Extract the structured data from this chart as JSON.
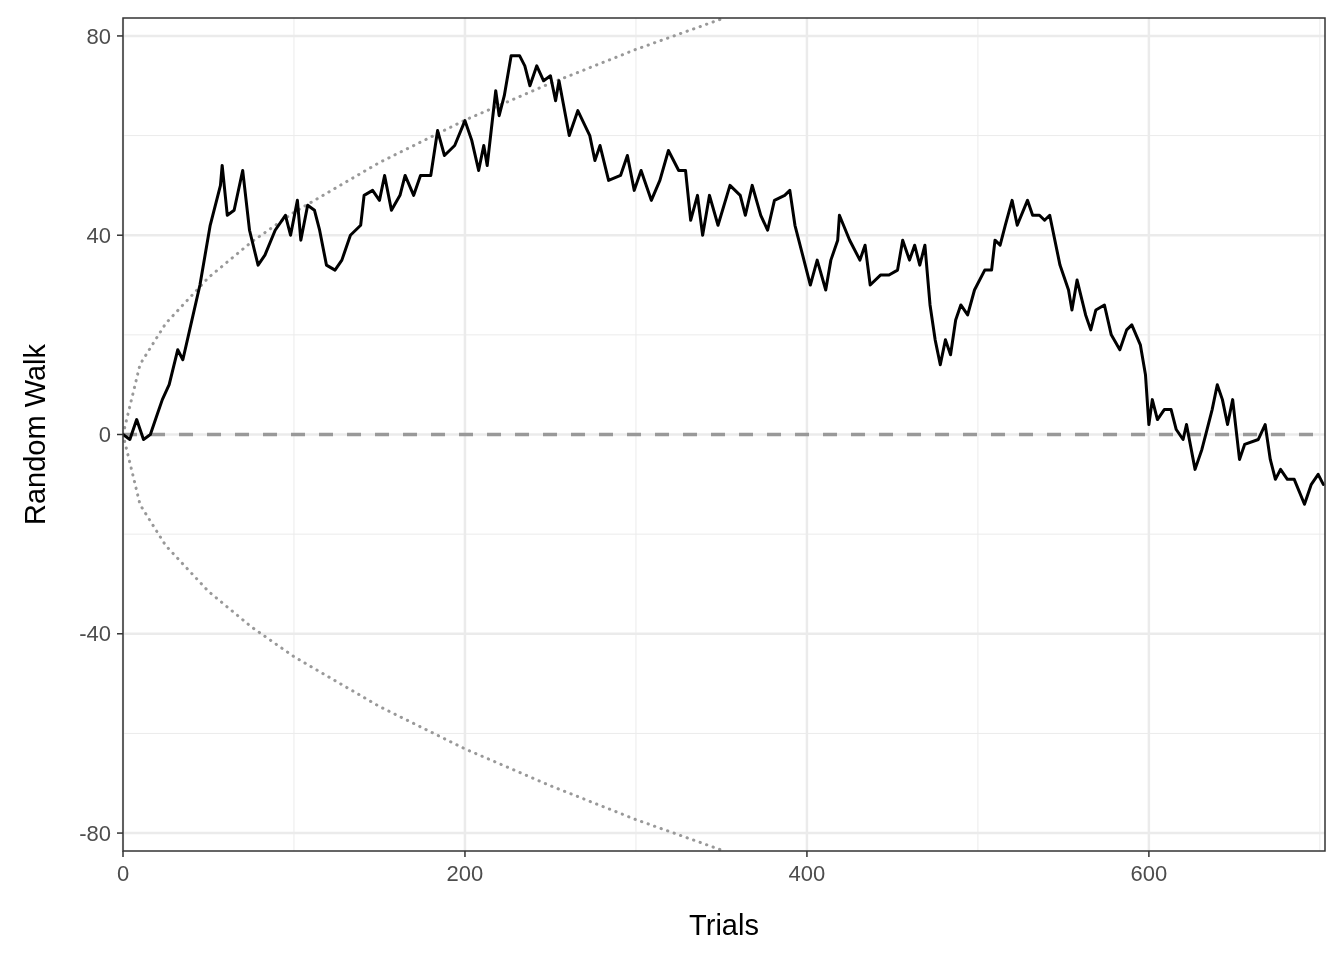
{
  "chart_data": {
    "type": "line",
    "xlabel": "Trials",
    "ylabel": "Random Walk",
    "xlim": [
      0,
      703
    ],
    "ylim": [
      -83.6,
      83.6
    ],
    "xticks": [
      0,
      200,
      400,
      600
    ],
    "yticks": [
      -80,
      -40,
      0,
      40,
      80
    ],
    "grid": true,
    "ref_lines": [
      {
        "axis": "y",
        "value": 0,
        "color": "#999999",
        "line_style": "dashed"
      }
    ],
    "series": [
      {
        "color": "#999999",
        "line_style": "dotted",
        "x": [
          0,
          10,
          25,
          50,
          75,
          100,
          150,
          200,
          250,
          300,
          350
        ],
        "values": [
          0,
          14.1,
          22.3,
          31.5,
          38.6,
          44.6,
          54.6,
          63.1,
          70.5,
          77.3,
          83.4
        ]
      },
      {
        "color": "#999999",
        "line_style": "dotted",
        "x": [
          0,
          10,
          25,
          50,
          75,
          100,
          150,
          200,
          250,
          300,
          350
        ],
        "values": [
          0,
          -14.1,
          -22.3,
          -31.5,
          -38.6,
          -44.6,
          -54.6,
          -63.1,
          -70.5,
          -77.3,
          -83.4
        ]
      },
      {
        "color": "#000000",
        "line_style": "solid",
        "x": [
          0,
          4,
          8,
          12,
          16,
          20,
          23,
          27,
          32,
          35,
          39,
          45,
          51,
          57,
          58,
          61,
          65,
          70,
          74,
          79,
          83,
          89,
          95,
          98,
          102,
          104,
          108,
          112,
          115,
          119,
          124,
          128,
          133,
          139,
          141,
          146,
          150,
          153,
          157,
          162,
          165,
          170,
          174,
          180,
          184,
          188,
          194,
          200,
          204,
          208,
          211,
          213,
          218,
          220,
          223,
          227,
          232,
          235,
          238,
          242,
          246,
          250,
          253,
          255,
          261,
          266,
          273,
          276,
          279,
          284,
          291,
          295,
          299,
          303,
          309,
          314,
          319,
          325,
          329,
          332,
          336,
          339,
          343,
          348,
          355,
          361,
          364,
          368,
          373,
          377,
          381,
          387,
          390,
          393,
          399,
          402,
          406,
          411,
          414,
          418,
          419,
          425,
          431,
          434,
          437,
          443,
          448,
          453,
          456,
          460,
          463,
          466,
          469,
          472,
          475,
          478,
          481,
          484,
          487,
          490,
          494,
          498,
          504,
          508,
          510,
          513,
          516,
          520,
          523,
          529,
          532,
          536,
          539,
          542,
          548,
          553,
          555,
          558,
          563,
          566,
          569,
          574,
          578,
          583,
          587,
          590,
          595,
          598,
          600,
          602,
          605,
          609,
          613,
          616,
          620,
          622,
          627,
          631,
          634,
          637,
          640,
          643,
          646,
          649,
          653,
          656,
          664,
          668,
          671,
          674,
          677,
          681,
          685,
          691,
          695,
          699,
          702
        ],
        "values": [
          0,
          -1,
          3,
          -1,
          0,
          4,
          7,
          10,
          17,
          15,
          21,
          30,
          42,
          50,
          54,
          44,
          45,
          53,
          41,
          34,
          36,
          41,
          44,
          40,
          47,
          39,
          46,
          45,
          41,
          34,
          33,
          35,
          40,
          42,
          48,
          49,
          47,
          52,
          45,
          48,
          52,
          48,
          52,
          52,
          61,
          56,
          58,
          63,
          59,
          53,
          58,
          54,
          69,
          64,
          68,
          76,
          76,
          74,
          70,
          74,
          71,
          72,
          67,
          71,
          60,
          65,
          60,
          55,
          58,
          51,
          52,
          56,
          49,
          53,
          47,
          51,
          57,
          53,
          53,
          43,
          48,
          40,
          48,
          42,
          50,
          48,
          44,
          50,
          44,
          41,
          47,
          48,
          49,
          42,
          34,
          30,
          35,
          29,
          35,
          39,
          44,
          39,
          35,
          38,
          30,
          32,
          32,
          33,
          39,
          35,
          38,
          34,
          38,
          26,
          19,
          14,
          19,
          16,
          23,
          26,
          24,
          29,
          33,
          33,
          39,
          38,
          42,
          47,
          42,
          47,
          44,
          44,
          43,
          44,
          34,
          29,
          25,
          31,
          24,
          21,
          25,
          26,
          20,
          17,
          21,
          22,
          18,
          12,
          2,
          7,
          3,
          5,
          5,
          1,
          -1,
          2,
          -7,
          -3,
          1,
          5,
          10,
          7,
          2,
          7,
          -5,
          -2,
          -1,
          2,
          -5,
          -9,
          -7,
          -9,
          -9,
          -14,
          -10,
          -8,
          -10
        ]
      }
    ]
  }
}
